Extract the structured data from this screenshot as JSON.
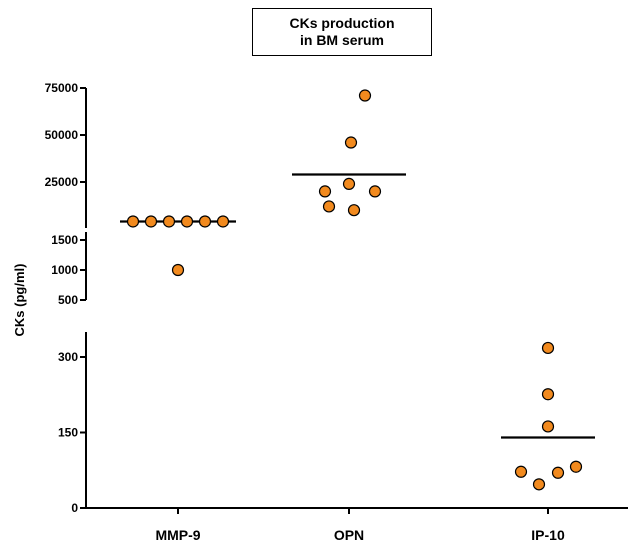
{
  "chart_data": {
    "type": "scatter",
    "title": [
      "CKs production",
      "in BM serum"
    ],
    "ylabel": "CKs (pg/ml)",
    "categories": [
      "MMP-9",
      "OPN",
      "IP-10"
    ],
    "y_axis_segments": [
      {
        "range": [
          0,
          350
        ],
        "ticks": [
          "0",
          "150",
          "300"
        ]
      },
      {
        "range": [
          500,
          1700
        ],
        "ticks": [
          "500",
          "1000",
          "1500"
        ]
      },
      {
        "range": [
          0,
          75000
        ],
        "ticks": [
          "25000",
          "50000",
          "75000"
        ]
      }
    ],
    "series": [
      {
        "category": "MMP-9",
        "mean": 4000,
        "points": [
          4000,
          4000,
          4000,
          4000,
          4000,
          4000,
          1000
        ]
      },
      {
        "category": "OPN",
        "mean": 29000,
        "points": [
          71000,
          46000,
          24000,
          20000,
          20000,
          12000,
          10000
        ]
      },
      {
        "category": "IP-10",
        "mean": 140,
        "points": [
          318,
          226,
          162,
          82,
          72,
          70,
          47
        ]
      }
    ],
    "colors": {
      "point_fill": "#F28A1E",
      "point_stroke": "#000000"
    }
  }
}
